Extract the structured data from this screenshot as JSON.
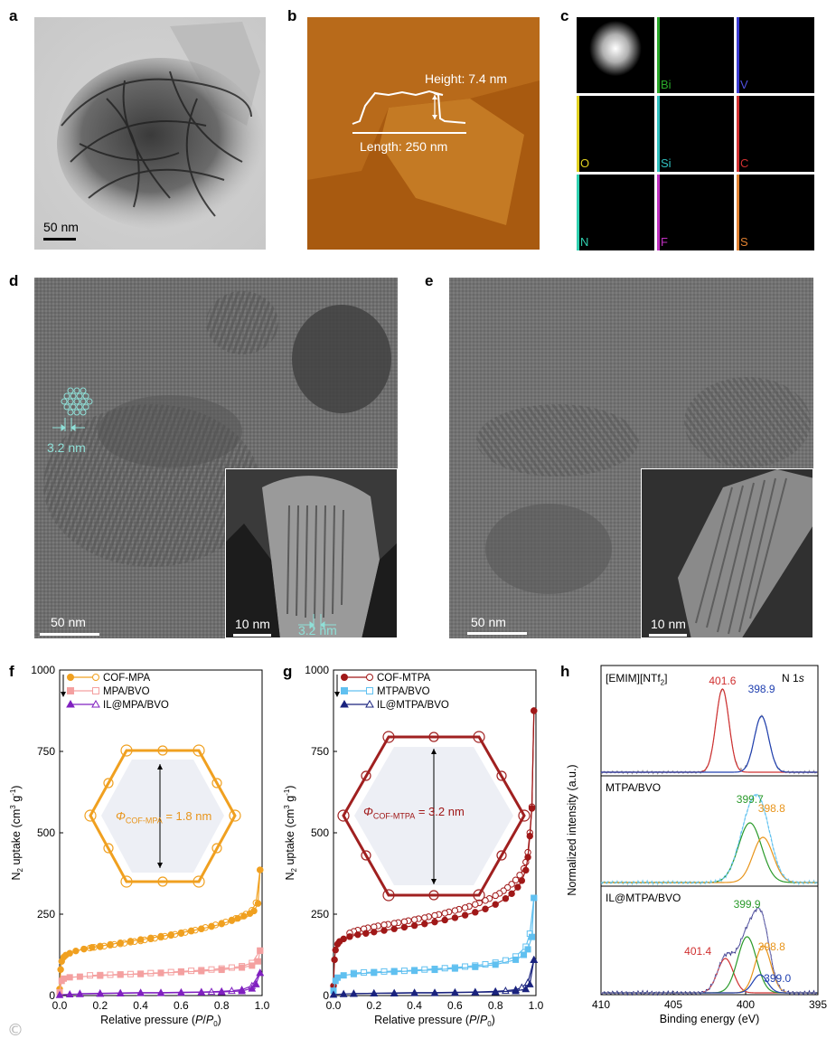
{
  "panels": {
    "a": {
      "label": "a",
      "scale_bar": "50 nm"
    },
    "b": {
      "label": "b",
      "height_text": "Height: 7.4 nm",
      "length_text": "Length: 250 nm"
    },
    "c": {
      "label": "c",
      "elements": [
        "Bi",
        "V",
        "O",
        "Si",
        "C",
        "N",
        "F",
        "S"
      ]
    },
    "d": {
      "label": "d",
      "pore_text": "3.2 nm",
      "scale_bar": "50 nm",
      "inset_scale_bar": "10 nm",
      "inset_pore_text": "3.2 nm"
    },
    "e": {
      "label": "e",
      "scale_bar": "50 nm",
      "inset_scale_bar": "10 nm"
    },
    "f": {
      "label": "f",
      "structure_label": "Φ",
      "structure_sub": "COF-MPA",
      "structure_value": " = 1.8 nm"
    },
    "g": {
      "label": "g",
      "structure_label": "Φ",
      "structure_sub": "COF-MTPA",
      "structure_value": " = 3.2 nm"
    },
    "h": {
      "label": "h",
      "section1_title": "[EMIM][NTf",
      "section1_sub": "2",
      "section1_close": "]",
      "section2_title": "MTPA/BVO",
      "section3_title": "IL@MTPA/BVO",
      "core_level": "N 1",
      "core_level_italic": "s"
    }
  },
  "colors": {
    "cof_mpa": "#f0a020",
    "mpa_bvo": "#f4a0a0",
    "il_mpa_bvo": "#8020c0",
    "cof_mtpa": "#a01818",
    "mtpa_bvo": "#60c0f0",
    "il_mtpa_bvo": "#1a237e",
    "teal": "#7fd8d0",
    "xps_red": "#d03030",
    "xps_blue": "#2040b0",
    "xps_green": "#2a9a2a",
    "xps_orange": "#e8941a"
  },
  "chart_data": [
    {
      "panel": "f",
      "type": "scatter",
      "xlabel": "Relative pressure (P/P0)",
      "ylabel": "N2 uptake (cm3 g-1)",
      "xlim": [
        0,
        1.0
      ],
      "ylim": [
        0,
        1000
      ],
      "xticks": [
        "0.0",
        "0.2",
        "0.4",
        "0.6",
        "0.8",
        "1.0"
      ],
      "yticks": [
        "0",
        "250",
        "500",
        "750",
        "1000"
      ],
      "legend_position": "top-left",
      "series": [
        {
          "name": "COF-MPA",
          "adsorption_x": [
            0.0,
            0.005,
            0.01,
            0.02,
            0.03,
            0.05,
            0.08,
            0.12,
            0.16,
            0.2,
            0.25,
            0.3,
            0.35,
            0.4,
            0.45,
            0.5,
            0.55,
            0.6,
            0.65,
            0.7,
            0.75,
            0.8,
            0.85,
            0.88,
            0.91,
            0.94,
            0.96,
            0.98,
            0.99
          ],
          "adsorption_y": [
            20,
            80,
            105,
            118,
            124,
            130,
            137,
            143,
            148,
            152,
            157,
            162,
            167,
            172,
            177,
            182,
            187,
            193,
            199,
            205,
            212,
            220,
            230,
            237,
            244,
            252,
            260,
            283,
            386
          ],
          "desorption_x": [
            0.99,
            0.97,
            0.95,
            0.92,
            0.9,
            0.87,
            0.85,
            0.82,
            0.8,
            0.77,
            0.75,
            0.72,
            0.7,
            0.67,
            0.65,
            0.62,
            0.6,
            0.57,
            0.55,
            0.52,
            0.5,
            0.47,
            0.45,
            0.42,
            0.4,
            0.37,
            0.35,
            0.32,
            0.3,
            0.27,
            0.25,
            0.22,
            0.2,
            0.17,
            0.15,
            0.12
          ],
          "desorption_y": [
            386,
            285,
            262,
            250,
            244,
            237,
            232,
            226,
            222,
            217,
            213,
            209,
            205,
            201,
            198,
            194,
            191,
            188,
            185,
            182,
            179,
            176,
            174,
            171,
            168,
            166,
            164,
            161,
            159,
            157,
            155,
            152,
            150,
            148,
            146,
            143
          ]
        },
        {
          "name": "MPA/BVO",
          "adsorption_x": [
            0.0,
            0.01,
            0.02,
            0.05,
            0.1,
            0.2,
            0.3,
            0.4,
            0.5,
            0.6,
            0.7,
            0.8,
            0.9,
            0.95,
            0.98,
            0.99
          ],
          "adsorption_y": [
            10,
            45,
            52,
            56,
            58,
            61,
            64,
            66,
            69,
            72,
            75,
            79,
            86,
            92,
            105,
            138
          ],
          "desorption_x": [
            0.99,
            0.95,
            0.9,
            0.85,
            0.8,
            0.75,
            0.7,
            0.65,
            0.6,
            0.55,
            0.5,
            0.45,
            0.4,
            0.35,
            0.3,
            0.25,
            0.2,
            0.15
          ],
          "desorption_y": [
            138,
            100,
            90,
            86,
            83,
            80,
            78,
            76,
            74,
            72,
            70,
            69,
            67,
            66,
            65,
            64,
            63,
            62
          ]
        },
        {
          "name": "IL@MPA/BVO",
          "adsorption_x": [
            0.0,
            0.05,
            0.1,
            0.2,
            0.3,
            0.4,
            0.5,
            0.6,
            0.7,
            0.8,
            0.9,
            0.95,
            0.97,
            0.99
          ],
          "adsorption_y": [
            2,
            4,
            5,
            6,
            7,
            8,
            8,
            9,
            10,
            11,
            14,
            22,
            35,
            70
          ],
          "desorption_x": [
            0.99,
            0.95,
            0.9,
            0.85,
            0.8,
            0.75,
            0.7,
            0.6,
            0.5,
            0.4,
            0.3,
            0.2,
            0.1
          ],
          "desorption_y": [
            70,
            30,
            18,
            15,
            13,
            12,
            11,
            10,
            9,
            9,
            8,
            7,
            6
          ]
        }
      ]
    },
    {
      "panel": "g",
      "type": "scatter",
      "xlabel": "Relative pressure (P/P0)",
      "ylabel": "N2 uptake (cm3 g-1)",
      "xlim": [
        0,
        1.0
      ],
      "ylim": [
        0,
        1000
      ],
      "xticks": [
        "0.0",
        "0.2",
        "0.4",
        "0.6",
        "0.8",
        "1.0"
      ],
      "yticks": [
        "0",
        "250",
        "500",
        "750",
        "1000"
      ],
      "legend_position": "top-left",
      "series": [
        {
          "name": "COF-MTPA",
          "adsorption_x": [
            0.0,
            0.005,
            0.01,
            0.02,
            0.03,
            0.05,
            0.08,
            0.12,
            0.16,
            0.2,
            0.25,
            0.3,
            0.35,
            0.4,
            0.45,
            0.5,
            0.55,
            0.6,
            0.65,
            0.7,
            0.75,
            0.8,
            0.85,
            0.88,
            0.91,
            0.93,
            0.95,
            0.96,
            0.97,
            0.98,
            0.99
          ],
          "adsorption_y": [
            30,
            110,
            140,
            158,
            166,
            174,
            181,
            187,
            191,
            195,
            200,
            205,
            210,
            215,
            220,
            226,
            232,
            239,
            247,
            256,
            266,
            280,
            298,
            313,
            333,
            353,
            385,
            425,
            490,
            575,
            875
          ],
          "desorption_x": [
            0.99,
            0.98,
            0.97,
            0.96,
            0.95,
            0.94,
            0.92,
            0.9,
            0.88,
            0.86,
            0.84,
            0.82,
            0.8,
            0.77,
            0.75,
            0.72,
            0.7,
            0.67,
            0.65,
            0.62,
            0.6,
            0.57,
            0.55,
            0.52,
            0.5,
            0.47,
            0.45,
            0.42,
            0.4,
            0.37,
            0.35,
            0.32,
            0.3,
            0.27,
            0.25,
            0.22,
            0.2,
            0.17,
            0.15,
            0.12,
            0.1,
            0.08
          ],
          "desorption_y": [
            875,
            580,
            500,
            440,
            410,
            390,
            370,
            355,
            342,
            332,
            322,
            314,
            307,
            298,
            292,
            285,
            280,
            274,
            270,
            265,
            261,
            257,
            253,
            249,
            246,
            242,
            239,
            236,
            233,
            230,
            227,
            224,
            222,
            219,
            217,
            214,
            211,
            208,
            205,
            201,
            197,
            192
          ]
        },
        {
          "name": "MTPA/BVO",
          "adsorption_x": [
            0.0,
            0.01,
            0.02,
            0.05,
            0.1,
            0.2,
            0.3,
            0.4,
            0.5,
            0.6,
            0.7,
            0.8,
            0.9,
            0.94,
            0.96,
            0.98,
            0.99
          ],
          "adsorption_y": [
            15,
            45,
            55,
            62,
            66,
            70,
            73,
            76,
            79,
            83,
            88,
            95,
            110,
            125,
            142,
            180,
            300
          ],
          "desorption_x": [
            0.99,
            0.97,
            0.95,
            0.9,
            0.85,
            0.8,
            0.75,
            0.7,
            0.65,
            0.6,
            0.55,
            0.5,
            0.45,
            0.4,
            0.35,
            0.3,
            0.25,
            0.2,
            0.15,
            0.1
          ],
          "desorption_y": [
            300,
            190,
            150,
            120,
            108,
            101,
            96,
            92,
            89,
            86,
            84,
            82,
            80,
            78,
            76,
            75,
            74,
            72,
            71,
            69
          ]
        },
        {
          "name": "IL@MTPA/BVO",
          "adsorption_x": [
            0.0,
            0.05,
            0.1,
            0.2,
            0.3,
            0.4,
            0.5,
            0.6,
            0.7,
            0.8,
            0.9,
            0.95,
            0.97,
            0.99
          ],
          "adsorption_y": [
            3,
            5,
            6,
            7,
            7,
            8,
            8,
            9,
            10,
            11,
            14,
            20,
            35,
            110
          ],
          "desorption_x": [
            0.99,
            0.96,
            0.93,
            0.9,
            0.85,
            0.8,
            0.7,
            0.6,
            0.5,
            0.4,
            0.3,
            0.2,
            0.1
          ],
          "desorption_y": [
            110,
            40,
            25,
            18,
            15,
            13,
            11,
            10,
            9,
            9,
            8,
            7,
            6
          ]
        }
      ]
    },
    {
      "panel": "h",
      "type": "line",
      "xlabel": "Binding energy (eV)",
      "ylabel": "Normalized intensity (a.u.)",
      "xlim": [
        410,
        395
      ],
      "xticks": [
        "410",
        "405",
        "400",
        "395"
      ],
      "peaks": [
        {
          "section": "[EMIM][NTf2]",
          "position": 401.6,
          "label": "401.6",
          "color": "#d03030"
        },
        {
          "section": "[EMIM][NTf2]",
          "position": 398.9,
          "label": "398.9",
          "color": "#2040b0"
        },
        {
          "section": "MTPA/BVO",
          "position": 399.7,
          "label": "399.7",
          "color": "#2a9a2a"
        },
        {
          "section": "MTPA/BVO",
          "position": 398.8,
          "label": "398.8",
          "color": "#e8941a"
        },
        {
          "section": "IL@MTPA/BVO",
          "position": 399.9,
          "label": "399.9",
          "color": "#2a9a2a"
        },
        {
          "section": "IL@MTPA/BVO",
          "position": 401.4,
          "label": "401.4",
          "color": "#d03030"
        },
        {
          "section": "IL@MTPA/BVO",
          "position": 398.8,
          "label": "398.8",
          "color": "#e8941a"
        },
        {
          "section": "IL@MTPA/BVO",
          "position": 399.0,
          "label": "399.0",
          "color": "#2040b0"
        }
      ]
    }
  ]
}
